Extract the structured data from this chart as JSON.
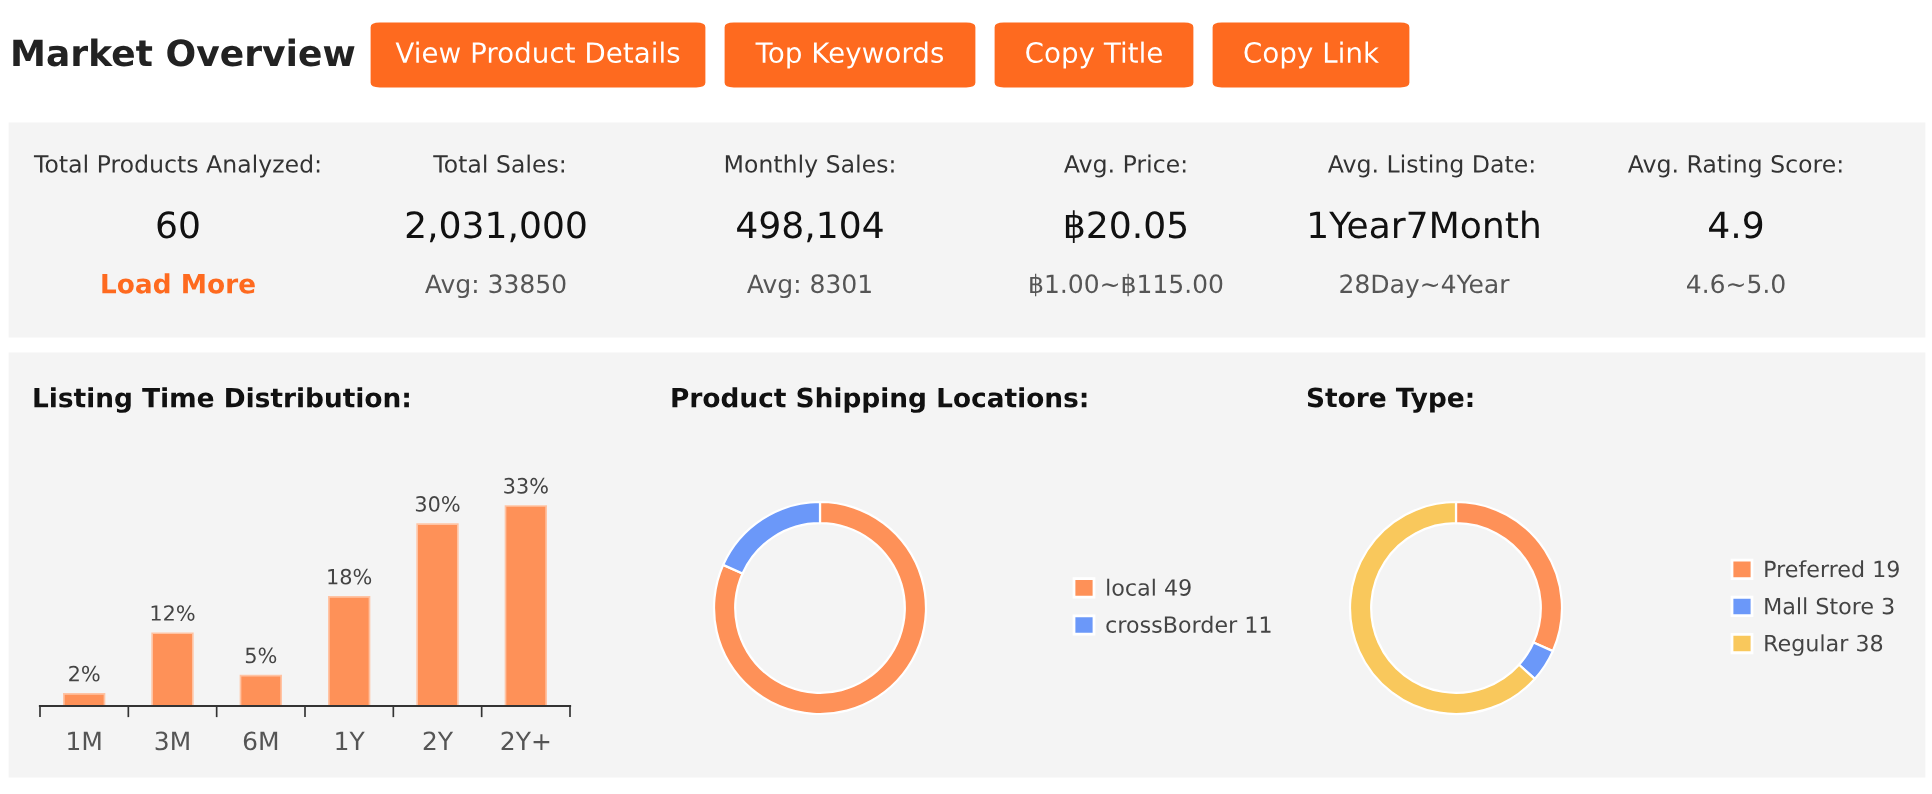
{
  "chart_data": [
    {
      "type": "other",
      "title": "Market Overview",
      "annotations": [
        "View Product Details",
        "Top Keywords",
        "Copy Title",
        "Copy Link",
        "Total Products Analyzed:",
        "60",
        "Load More",
        "Total Sales:",
        "2,031,000",
        "Avg: 33850",
        "Monthly Sales:",
        "498,104",
        "Avg: 8301",
        "Avg. Price:",
        "฿20.05",
        "฿1.00~฿115.00",
        "Avg. Listing Date:",
        "1Year7Month",
        "28Day~4Year",
        "Avg. Rating Score:",
        "4.9",
        "4.6~5.0"
      ]
    },
    {
      "type": "bar",
      "title": "Listing Time Distribution:",
      "categories": [
        "1M",
        "3M",
        "6M",
        "1Y",
        "2Y",
        "2Y+"
      ],
      "values": [
        2,
        12,
        5,
        18,
        30,
        33
      ],
      "value_labels": [
        "2%",
        "12%",
        "5%",
        "18%",
        "30%",
        "33%"
      ],
      "color": "#fe9158"
    },
    {
      "type": "donut",
      "title": "Product Shipping Locations:",
      "categories": [
        "local 49",
        "crossBorder 11"
      ],
      "values": [
        49,
        11
      ],
      "colors": [
        "#fe9158",
        "#6b98f9"
      ],
      "legend": "right"
    },
    {
      "type": "donut",
      "title": "Store Type:",
      "categories": [
        "Preferred 19",
        "Mall Store 3",
        "Regular 38"
      ],
      "values": [
        19,
        3,
        38
      ],
      "colors": [
        "#fe9158",
        "#6b98f9",
        "#f9c85c"
      ],
      "legend": "right"
    }
  ]
}
